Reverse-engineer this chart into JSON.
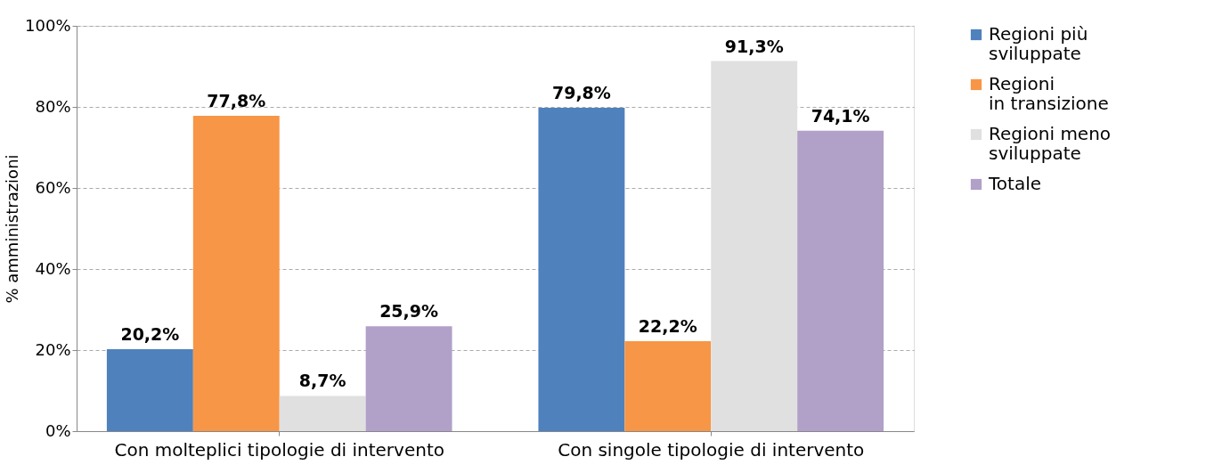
{
  "chart_data": {
    "type": "bar",
    "ylabel": "% amministrazioni",
    "categories": [
      "Con molteplici tipologie di intervento",
      "Con singole tipologie di intervento"
    ],
    "series": [
      {
        "name": "Regioni più\nsviluppate",
        "color": "#4f81bd",
        "values": [
          20.2,
          79.8
        ],
        "value_labels": [
          "20,2%",
          "79,8%"
        ]
      },
      {
        "name": "Regioni\nin transizione",
        "color": "#f79646",
        "values": [
          77.8,
          22.2
        ],
        "value_labels": [
          "77,8%",
          "22,2%"
        ]
      },
      {
        "name": "Regioni meno\nsviluppate",
        "color": "#e0e0e0",
        "values": [
          8.7,
          91.3
        ],
        "value_labels": [
          "8,7%",
          "91,3%"
        ]
      },
      {
        "name": "Totale",
        "color": "#b1a0c7",
        "values": [
          25.9,
          74.1
        ],
        "value_labels": [
          "25,9%",
          "74,1%"
        ]
      }
    ],
    "ylim": [
      0,
      100
    ],
    "yticks": [
      {
        "value": 0,
        "label": "0%"
      },
      {
        "value": 20,
        "label": "20%"
      },
      {
        "value": 40,
        "label": "40%"
      },
      {
        "value": 60,
        "label": "60%"
      },
      {
        "value": 80,
        "label": "80%"
      },
      {
        "value": 100,
        "label": "100%"
      }
    ],
    "grid": "y",
    "legend": "top right"
  }
}
